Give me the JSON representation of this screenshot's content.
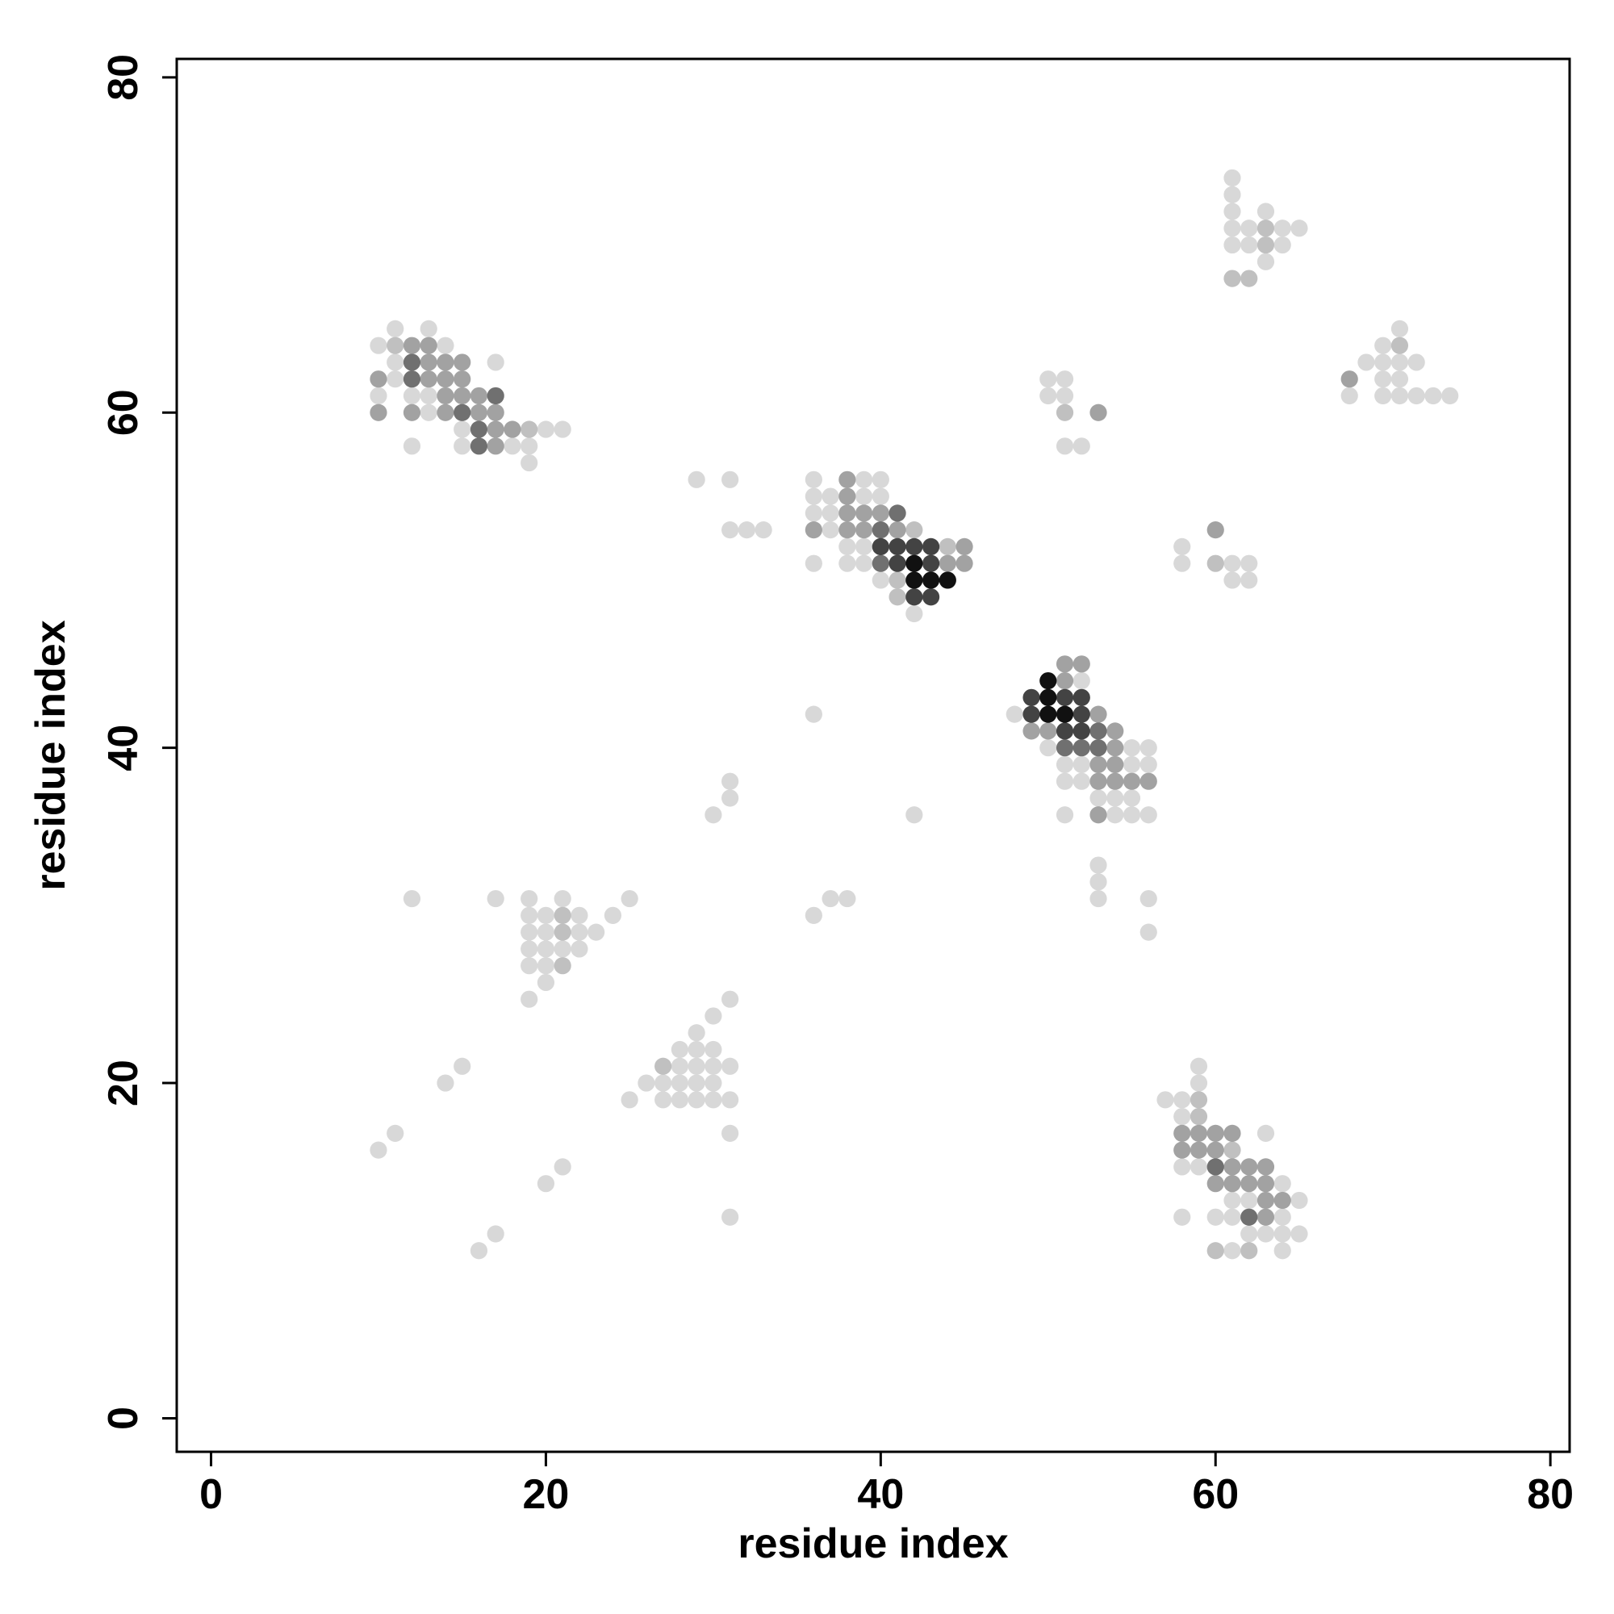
{
  "chart_data": {
    "type": "scatter",
    "xlabel": "residue index",
    "ylabel": "residue index",
    "xlim": [
      -2.05,
      81.15
    ],
    "ylim": [
      -2,
      81.1
    ],
    "xticks": [
      0,
      20,
      40,
      60,
      80
    ],
    "yticks": [
      0,
      20,
      40,
      60,
      80
    ],
    "series": [
      {
        "color": "#d8d8d8",
        "x": [
          11,
          13,
          10,
          14,
          11,
          17,
          11,
          10,
          12,
          13,
          13,
          15,
          20,
          21,
          12,
          15,
          18,
          19,
          19,
          61,
          61,
          61,
          63,
          61,
          62,
          64,
          65,
          61,
          62,
          64,
          63,
          71,
          70,
          69,
          70,
          71,
          72,
          70,
          71,
          68,
          70,
          71,
          72,
          73,
          74,
          50,
          51,
          50,
          51,
          51,
          52,
          29,
          31,
          36,
          39,
          40,
          36,
          37,
          39,
          40,
          36,
          37,
          37,
          31,
          32,
          33,
          38,
          39,
          36,
          38,
          39,
          40,
          42,
          52,
          48,
          50,
          55,
          56,
          51,
          52,
          55,
          56,
          51,
          52,
          53,
          54,
          55,
          51,
          54,
          55,
          56,
          36,
          42,
          31,
          31,
          30,
          53,
          53,
          53,
          56,
          56,
          58,
          58,
          61,
          62,
          61,
          62,
          12,
          17,
          19,
          21,
          25,
          19,
          20,
          22,
          24,
          19,
          20,
          22,
          23,
          19,
          20,
          21,
          22,
          19,
          20,
          20,
          19,
          36,
          37,
          38,
          31,
          30,
          29,
          28,
          29,
          30,
          28,
          29,
          30,
          31,
          26,
          27,
          28,
          29,
          30,
          25,
          27,
          28,
          29,
          30,
          31,
          31,
          31,
          15,
          14,
          10,
          11,
          20,
          21,
          16,
          17,
          59,
          59,
          57,
          58,
          58,
          63,
          58,
          59,
          64,
          61,
          62,
          65,
          58,
          60,
          61,
          64,
          62,
          63,
          64,
          65,
          61,
          64
        ],
        "values": [
          65,
          65,
          64,
          64,
          63,
          63,
          62,
          61,
          61,
          61,
          60,
          59,
          59,
          59,
          58,
          58,
          58,
          58,
          57,
          74,
          73,
          72,
          72,
          71,
          71,
          71,
          71,
          70,
          70,
          70,
          69,
          65,
          64,
          63,
          63,
          63,
          63,
          62,
          62,
          61,
          61,
          61,
          61,
          61,
          61,
          62,
          62,
          61,
          61,
          58,
          58,
          56,
          56,
          56,
          56,
          56,
          55,
          55,
          55,
          55,
          54,
          54,
          53,
          53,
          53,
          53,
          52,
          52,
          51,
          51,
          51,
          50,
          48,
          44,
          42,
          40,
          40,
          40,
          39,
          39,
          39,
          39,
          38,
          38,
          37,
          37,
          37,
          36,
          36,
          36,
          36,
          42,
          36,
          38,
          37,
          36,
          33,
          32,
          31,
          31,
          29,
          52,
          51,
          51,
          51,
          50,
          50,
          31,
          31,
          31,
          31,
          31,
          30,
          30,
          30,
          30,
          29,
          29,
          29,
          29,
          28,
          28,
          28,
          28,
          27,
          27,
          26,
          25,
          30,
          31,
          31,
          25,
          24,
          23,
          22,
          22,
          22,
          21,
          21,
          21,
          21,
          20,
          20,
          20,
          20,
          20,
          19,
          19,
          19,
          19,
          19,
          19,
          17,
          12,
          21,
          20,
          16,
          17,
          14,
          15,
          10,
          11,
          21,
          20,
          19,
          19,
          18,
          17,
          15,
          15,
          14,
          13,
          13,
          13,
          12,
          12,
          12,
          12,
          11,
          11,
          11,
          11,
          10,
          10
        ]
      },
      {
        "color": "#c0c0c0",
        "x": [
          11,
          19,
          42,
          44,
          41,
          41,
          51,
          60,
          63,
          63,
          61,
          62,
          71,
          21,
          21,
          21,
          27,
          59,
          59,
          61,
          60,
          62
        ],
        "values": [
          64,
          59,
          53,
          52,
          50,
          49,
          60,
          51,
          71,
          70,
          68,
          68,
          64,
          30,
          29,
          27,
          21,
          19,
          18,
          16,
          10,
          10
        ]
      },
      {
        "color": "#a2a2a2",
        "x": [
          12,
          13,
          13,
          14,
          15,
          10,
          13,
          14,
          15,
          14,
          15,
          16,
          10,
          12,
          14,
          16,
          17,
          17,
          18,
          17,
          38,
          38,
          38,
          39,
          40,
          36,
          38,
          39,
          41,
          45,
          44,
          45,
          53,
          60,
          51,
          52,
          51,
          53,
          49,
          50,
          54,
          54,
          53,
          54,
          53,
          54,
          55,
          56,
          53,
          58,
          59,
          60,
          61,
          58,
          59,
          60,
          61,
          62,
          63,
          60,
          61,
          62,
          63,
          63,
          64,
          63,
          68
        ],
        "values": [
          64,
          64,
          63,
          63,
          63,
          62,
          62,
          62,
          62,
          61,
          61,
          61,
          60,
          60,
          60,
          60,
          60,
          59,
          59,
          58,
          56,
          55,
          54,
          54,
          54,
          53,
          53,
          53,
          53,
          52,
          51,
          51,
          60,
          53,
          45,
          45,
          44,
          42,
          41,
          41,
          41,
          40,
          39,
          39,
          38,
          38,
          38,
          38,
          36,
          17,
          17,
          17,
          17,
          16,
          16,
          16,
          15,
          15,
          15,
          14,
          14,
          14,
          14,
          13,
          13,
          12,
          62
        ]
      },
      {
        "color": "#707070",
        "x": [
          12,
          12,
          17,
          15,
          16,
          16,
          41,
          40,
          40,
          53,
          51,
          52,
          53,
          60,
          62
        ],
        "values": [
          63,
          62,
          61,
          60,
          59,
          58,
          54,
          53,
          51,
          41,
          40,
          40,
          40,
          15,
          12
        ]
      },
      {
        "color": "#434343",
        "x": [
          40,
          41,
          42,
          43,
          41,
          43,
          42,
          43,
          49,
          51,
          52,
          49,
          52,
          51,
          52
        ],
        "values": [
          52,
          52,
          52,
          52,
          51,
          51,
          49,
          49,
          43,
          43,
          43,
          42,
          42,
          41,
          41
        ]
      },
      {
        "color": "#111111",
        "x": [
          42,
          42,
          43,
          44,
          50,
          50,
          50,
          51
        ],
        "values": [
          51,
          50,
          50,
          50,
          44,
          43,
          42,
          42
        ]
      }
    ]
  }
}
